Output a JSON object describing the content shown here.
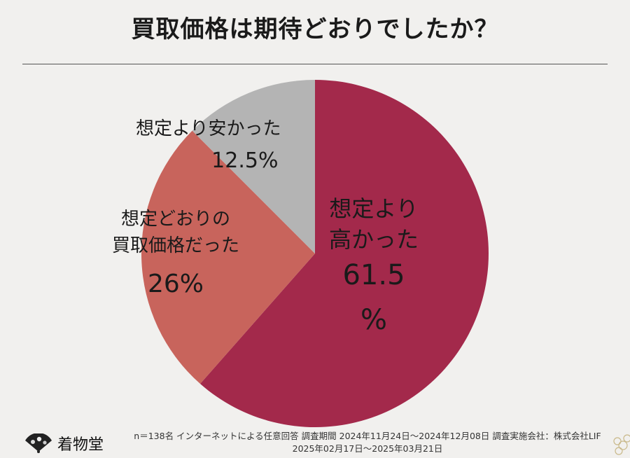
{
  "title": "買取価格は期待どおりでしたか？",
  "chart_data": {
    "type": "pie",
    "slices": [
      {
        "label_lines": [
          "想定より",
          "高かった"
        ],
        "value": 61.5,
        "display": [
          "61.5",
          "%"
        ],
        "color": "#a3294b"
      },
      {
        "label_lines": [
          "想定どおりの",
          "買取価格だった"
        ],
        "value": 26,
        "display": [
          "26%"
        ],
        "color": "#c8645c"
      },
      {
        "label_lines": [
          "想定より安かった"
        ],
        "value": 12.5,
        "display": [
          "12.5%"
        ],
        "color": "#b4b4b4"
      }
    ],
    "start_angle": "12 o'clock",
    "direction": "clockwise"
  },
  "footer": {
    "brand": "着物堂",
    "note_line1": "n＝138名 インターネットによる任意回答 調査期間 2024年11月24日～2024年12月08日 調査実施会社：株式会社LIF",
    "note_line2": "2025年02月17日～2025年03月21日"
  }
}
